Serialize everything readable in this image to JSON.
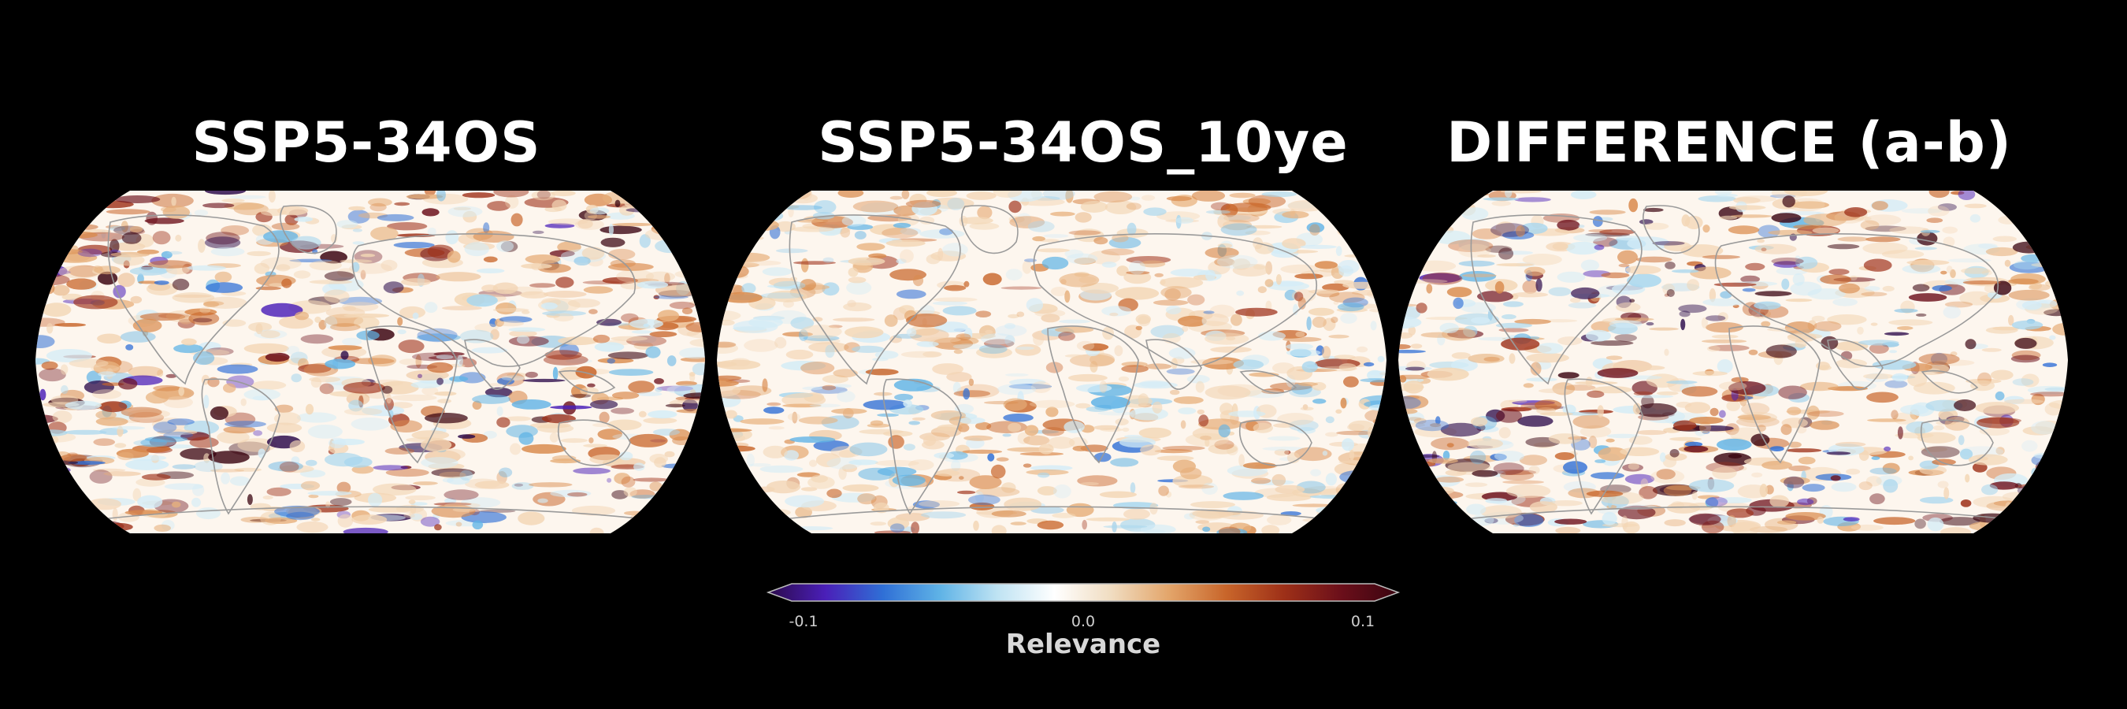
{
  "panels": [
    {
      "title": "SSP5-34OS"
    },
    {
      "title": "SSP5-34OS_10ye"
    },
    {
      "title": "DIFFERENCE (a-b)"
    }
  ],
  "colorbar": {
    "label": "Relevance",
    "ticks": [
      "-0.1",
      "0.0",
      "0.1"
    ],
    "colors": [
      "#2b0a4a",
      "#4a1fb8",
      "#2f6fd6",
      "#5fb3e6",
      "#bfe3f3",
      "#ffffff",
      "#f0dcc0",
      "#e3a56a",
      "#c8652a",
      "#9e3018",
      "#6b0f1a",
      "#3a0410"
    ]
  },
  "colors": {
    "background": "#000000",
    "land_outline": "#9a9a9a",
    "map_fill": "#fdf6ee"
  }
}
